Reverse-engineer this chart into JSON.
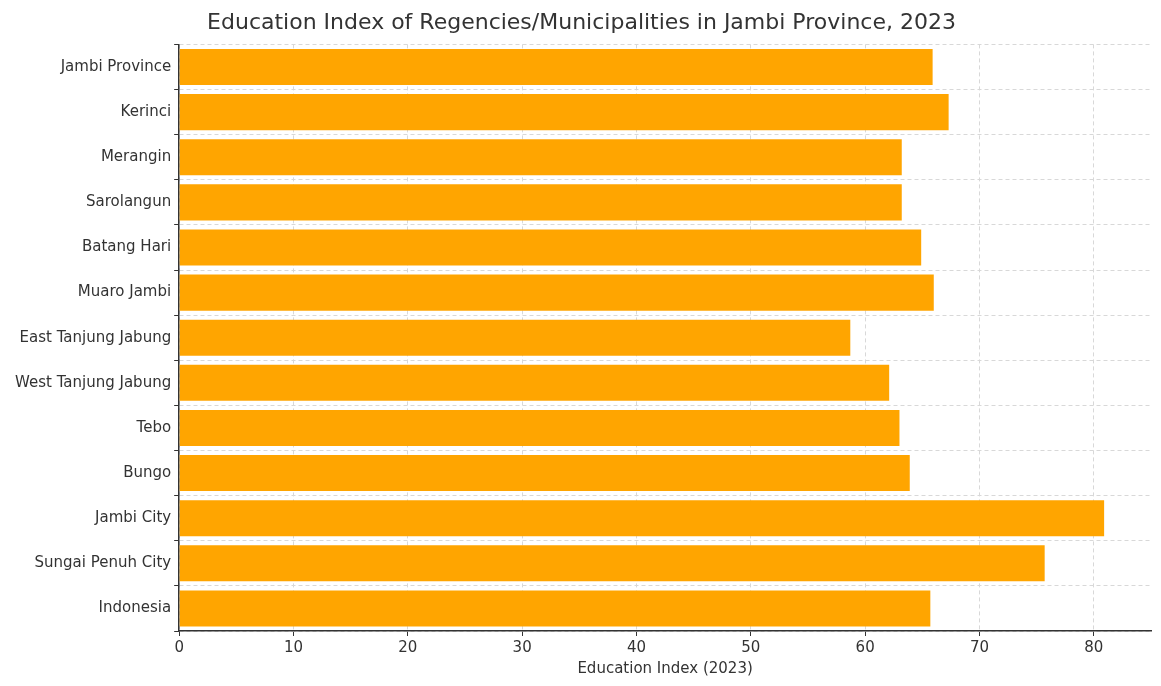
{
  "chart_data": {
    "type": "bar",
    "orientation": "horizontal",
    "title": "Education Index of Regencies/Municipalities in Jambi Province, 2023",
    "xlabel": "Education Index (2023)",
    "categories": [
      "Jambi Province",
      "Kerinci",
      "Merangin",
      "Sarolangun",
      "Batang Hari",
      "Muaro Jambi",
      "East Tanjung Jabung",
      "West Tanjung Jabung",
      "Tebo",
      "Bungo",
      "Jambi City",
      "Sungai Penuh City",
      "Indonesia"
    ],
    "values": [
      65.9,
      67.3,
      63.2,
      63.2,
      64.9,
      66.0,
      58.7,
      62.1,
      63.0,
      63.9,
      80.9,
      75.7,
      65.7
    ],
    "color": "#ffa500",
    "xlim": [
      0,
      85
    ],
    "xticks": [
      0,
      10,
      20,
      30,
      40,
      50,
      60,
      70,
      80
    ],
    "grid": true
  }
}
